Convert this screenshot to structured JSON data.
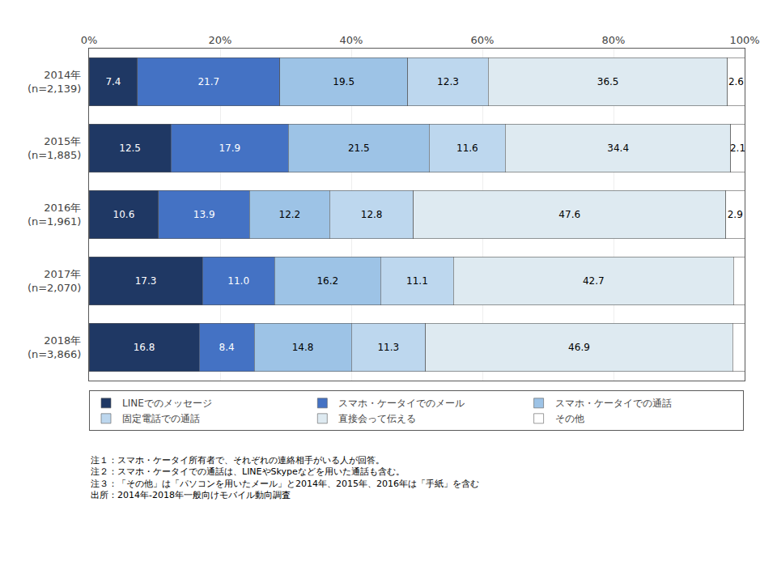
{
  "chart_data": {
    "type": "bar",
    "orientation": "horizontal",
    "stacked": true,
    "categories": [
      "2014年\n(n=2,139)",
      "2015年\n(n=1,885)",
      "2016年\n(n=1,961)",
      "2017年\n(n=2,070)",
      "2018年\n(n=3,866)"
    ],
    "series": [
      {
        "name": "LINEでのメッセージ",
        "color": "#1f3864",
        "values": [
          7.4,
          12.5,
          10.6,
          17.3,
          16.8
        ]
      },
      {
        "name": "スマホ・ケータイでのメール",
        "color": "#4472c4",
        "values": [
          21.7,
          17.9,
          13.9,
          11.0,
          8.4
        ],
        "value_labels": [
          "21.7",
          "17.9",
          "13.9",
          "11.0",
          "8.4"
        ]
      },
      {
        "name": "スマホ・ケータイでの通話",
        "color": "#9dc3e6",
        "values": [
          19.5,
          21.5,
          12.2,
          16.2,
          14.8
        ]
      },
      {
        "name": "固定電話での通話",
        "color": "#bdd7ee",
        "values": [
          12.3,
          11.6,
          12.8,
          11.1,
          11.3
        ]
      },
      {
        "name": "直接会って伝える",
        "color": "#deeaf1",
        "values": [
          36.5,
          34.4,
          47.6,
          42.7,
          46.9
        ]
      },
      {
        "name": "その他",
        "color": "#ffffff",
        "values": [
          2.6,
          2.1,
          2.9,
          1.7,
          1.8
        ],
        "value_labels": [
          "2.6",
          "2.1",
          "2.9",
          null,
          null
        ]
      }
    ],
    "xlim": [
      0,
      100
    ],
    "xticks": [
      {
        "value": 0,
        "label": "0%"
      },
      {
        "value": 20,
        "label": "20%"
      },
      {
        "value": 40,
        "label": "40%"
      },
      {
        "value": 60,
        "label": "60%"
      },
      {
        "value": 80,
        "label": "80%"
      },
      {
        "value": 100,
        "label": "100%"
      }
    ],
    "grid": true,
    "legend": "bottom",
    "data_labels": true,
    "annotations": [
      "注１：スマホ・ケータイ所有者で、それぞれの連絡相手がいる人が回答。",
      "注２：スマホ・ケータイでの通話は、LINEやSkypeなどを用いた通話も含む。",
      "注３：「その他」は「パソコンを用いたメール」と2014年、2015年、2016年は「手紙」を含む",
      "出所：2014年-2018年一般向けモバイル動向調査"
    ]
  }
}
